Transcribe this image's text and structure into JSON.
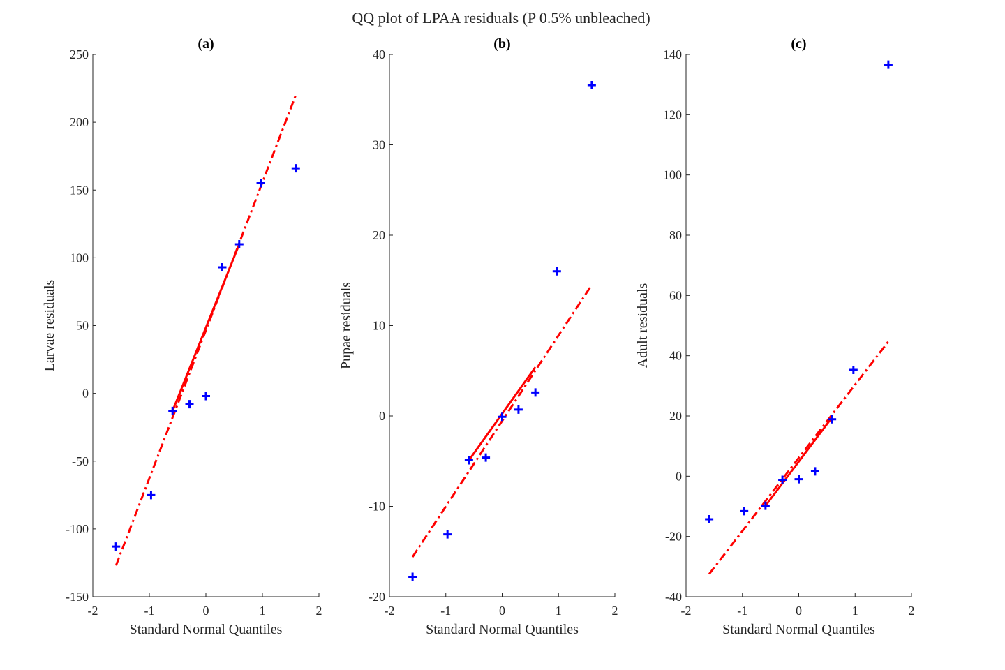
{
  "figure": {
    "title": "QQ plot of LPAA residuals (P 0.5% unbleached)"
  },
  "colors": {
    "points": "#0000ff",
    "reference_line": "#ff0000",
    "axes": "#262626"
  },
  "chart_data": [
    {
      "type": "scatter",
      "title": "(a)",
      "xlabel": "Standard Normal Quantiles",
      "ylabel": "Larvae residuals",
      "xlim": [
        -2,
        2
      ],
      "ylim": [
        -150,
        250
      ],
      "xticks": [
        -2,
        -1,
        0,
        1,
        2
      ],
      "yticks": [
        -150,
        -100,
        -50,
        0,
        50,
        100,
        150,
        200,
        250
      ],
      "xticklabels": [
        "-2",
        "-1",
        "0",
        "1",
        "2"
      ],
      "yticklabels": [
        "-150",
        "-100",
        "-50",
        "0",
        "50",
        "100",
        "150",
        "200",
        "250"
      ],
      "grid": false,
      "marker": "+",
      "points": {
        "x": [
          -1.59,
          -0.97,
          -0.59,
          -0.29,
          0.0,
          0.29,
          0.59,
          0.97,
          1.59
        ],
        "y": [
          -113,
          -75,
          -13,
          -8,
          -2,
          93,
          110,
          155,
          166
        ]
      },
      "reference_line": {
        "solid": {
          "x": [
            -0.59,
            0.59
          ],
          "y": [
            -13,
            110
          ]
        },
        "dashed": {
          "x": [
            -1.59,
            1.59
          ],
          "y": [
            -127,
            220
          ]
        }
      }
    },
    {
      "type": "scatter",
      "title": "(b)",
      "xlabel": "Standard Normal Quantiles",
      "ylabel": "Pupae residuals",
      "xlim": [
        -2,
        2
      ],
      "ylim": [
        -20,
        40
      ],
      "xticks": [
        -2,
        -1,
        0,
        1,
        2
      ],
      "yticks": [
        -20,
        -10,
        0,
        10,
        20,
        30,
        40
      ],
      "xticklabels": [
        "-2",
        "-1",
        "0",
        "1",
        "2"
      ],
      "yticklabels": [
        "-20",
        "-10",
        "0",
        "10",
        "20",
        "30",
        "40"
      ],
      "grid": false,
      "marker": "+",
      "points": {
        "x": [
          -1.59,
          -0.97,
          -0.59,
          -0.29,
          0.0,
          0.29,
          0.59,
          0.97,
          1.59
        ],
        "y": [
          -17.8,
          -13.1,
          -4.9,
          -4.6,
          -0.1,
          0.7,
          2.6,
          16.0,
          36.6
        ]
      },
      "reference_line": {
        "solid": {
          "x": [
            -0.59,
            0.59
          ],
          "y": [
            -4.9,
            5.4
          ]
        },
        "dashed": {
          "x": [
            -1.59,
            1.59
          ],
          "y": [
            -15.6,
            14.5
          ]
        }
      }
    },
    {
      "type": "scatter",
      "title": "(c)",
      "xlabel": "Standard Normal Quantiles",
      "ylabel": "Adult residuals",
      "xlim": [
        -2,
        2
      ],
      "ylim": [
        -40,
        140
      ],
      "xticks": [
        -2,
        -1,
        0,
        1,
        2
      ],
      "yticks": [
        -40,
        -20,
        0,
        20,
        40,
        60,
        80,
        100,
        120,
        140
      ],
      "xticklabels": [
        "-2",
        "-1",
        "0",
        "1",
        "2"
      ],
      "yticklabels": [
        "-40",
        "-20",
        "0",
        "20",
        "40",
        "60",
        "80",
        "100",
        "120",
        "140"
      ],
      "grid": false,
      "marker": "+",
      "points": {
        "x": [
          -1.59,
          -0.97,
          -0.59,
          -0.29,
          0.0,
          0.29,
          0.59,
          0.97,
          1.59
        ],
        "y": [
          -14.3,
          -11.6,
          -9.8,
          -1.2,
          -1.0,
          1.6,
          18.9,
          35.3,
          136.6
        ]
      },
      "reference_line": {
        "solid": {
          "x": [
            -0.59,
            0.59
          ],
          "y": [
            -9.8,
            19.5
          ]
        },
        "dashed": {
          "x": [
            -1.59,
            1.59
          ],
          "y": [
            -32.5,
            44.7
          ]
        }
      }
    }
  ]
}
